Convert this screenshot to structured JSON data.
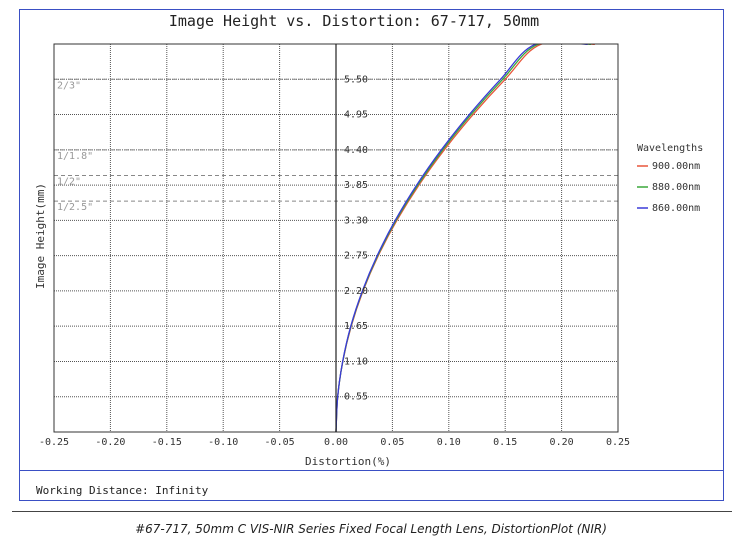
{
  "chart_data": {
    "type": "line",
    "title": "Image Height vs. Distortion: 67-717, 50mm",
    "xlabel": "Distortion(%)",
    "ylabel": "Image Height(mm)",
    "xlim": [
      -0.25,
      0.25
    ],
    "ylim": [
      0,
      6.05
    ],
    "x_ticks": [
      "-0.25",
      "-0.20",
      "-0.15",
      "-0.10",
      "-0.05",
      "0.00",
      "0.05",
      "0.10",
      "0.15",
      "0.20",
      "0.25"
    ],
    "x_tick_values": [
      -0.25,
      -0.2,
      -0.15,
      -0.1,
      -0.05,
      0.0,
      0.05,
      0.1,
      0.15,
      0.2,
      0.25
    ],
    "y_ticks": [
      "0.55",
      "1.10",
      "1.65",
      "2.20",
      "2.75",
      "3.30",
      "3.85",
      "4.40",
      "4.95",
      "5.50"
    ],
    "y_tick_values": [
      0.55,
      1.1,
      1.65,
      2.2,
      2.75,
      3.3,
      3.85,
      4.4,
      4.95,
      5.5
    ],
    "grid": true,
    "legend_title": "Wavelengths",
    "legend_position": "right",
    "sensor_formats": [
      {
        "label": "2/3\"",
        "height": 5.5
      },
      {
        "label": "1/1.8\"",
        "height": 4.4
      },
      {
        "label": "1/2\"",
        "height": 4.0
      },
      {
        "label": "1/2.5\"",
        "height": 3.6
      }
    ],
    "series": [
      {
        "name": "900.00nm",
        "color": "#e8553a",
        "x": [
          0.0,
          0.0015,
          0.006,
          0.0135,
          0.024,
          0.0375,
          0.054,
          0.0735,
          0.096,
          0.1215,
          0.15,
          0.1815,
          0.2295
        ],
        "y": [
          0.0,
          0.55,
          1.1,
          1.65,
          2.2,
          2.75,
          3.3,
          3.85,
          4.4,
          4.95,
          5.5,
          6.05,
          6.05
        ]
      },
      {
        "name": "880.00nm",
        "color": "#3aa83a",
        "x": [
          0.0,
          0.0015,
          0.006,
          0.0133,
          0.0237,
          0.037,
          0.0532,
          0.0725,
          0.0946,
          0.1197,
          0.1478,
          0.1789,
          0.2262
        ],
        "y": [
          0.0,
          0.55,
          1.1,
          1.65,
          2.2,
          2.75,
          3.3,
          3.85,
          4.4,
          4.95,
          5.5,
          6.05,
          6.05
        ]
      },
      {
        "name": "860.00nm",
        "color": "#3a3ad8",
        "x": [
          0.0,
          0.0015,
          0.0059,
          0.0131,
          0.0234,
          0.0365,
          0.0525,
          0.0715,
          0.0934,
          0.1182,
          0.1459,
          0.1766,
          0.2232
        ],
        "y": [
          0.0,
          0.55,
          1.1,
          1.65,
          2.2,
          2.75,
          3.3,
          3.85,
          4.4,
          4.95,
          5.5,
          6.05,
          6.05
        ]
      }
    ]
  },
  "working_distance": "Working Distance: Infinity",
  "caption": "#67-717, 50mm C VIS-NIR Series Fixed Focal Length Lens, DistortionPlot (NIR)"
}
